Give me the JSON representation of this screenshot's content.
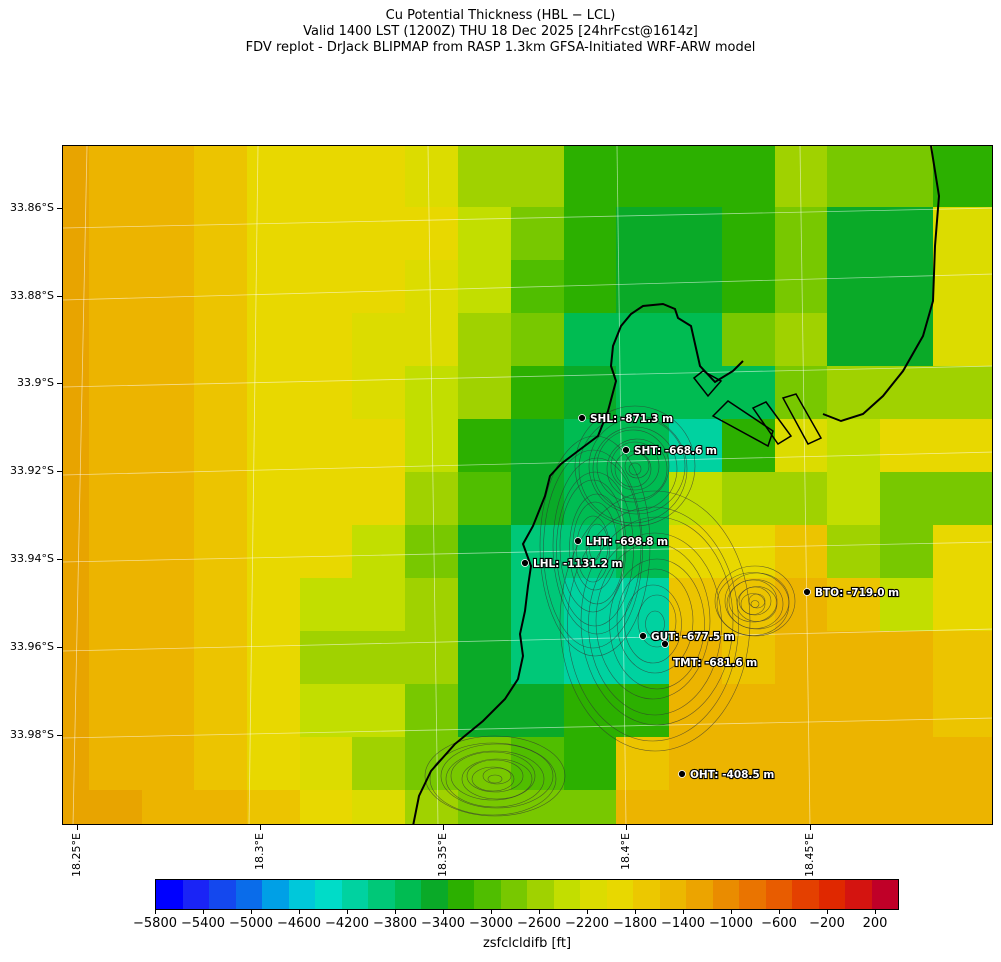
{
  "title": {
    "line1": "Cu Potential Thickness (HBL − LCL)",
    "line2": "Valid 1400 LST (1200Z) THU 18 Dec 2025 [24hrFcst@1614z]",
    "line3": "FDV replot - DrJack BLIPMAP from RASP 1.3km GFSA-Initiated WRF-ARW model"
  },
  "map": {
    "lat_labels": [
      "33.86°S",
      "33.88°S",
      "33.9°S",
      "33.92°S",
      "33.94°S",
      "33.96°S",
      "33.98°S"
    ],
    "lon_labels": [
      "18.25°E",
      "18.3°E",
      "18.35°E",
      "18.4°E",
      "18.45°E"
    ],
    "stations": [
      {
        "code": "SHL",
        "label": "SHL: -871.3 m",
        "value_m": -871.3
      },
      {
        "code": "SHT",
        "label": "SHT: -668.6 m",
        "value_m": -668.6
      },
      {
        "code": "LHT",
        "label": "LHT: -698.8 m",
        "value_m": -698.8
      },
      {
        "code": "LHL",
        "label": "LHL: -1131.2 m",
        "value_m": -1131.2
      },
      {
        "code": "BTO",
        "label": "BTO: -719.0 m",
        "value_m": -719.0
      },
      {
        "code": "GUT",
        "label": "GUT: -677.5 m",
        "value_m": -677.5
      },
      {
        "code": "TMT",
        "label": "TMT: -681.6 m",
        "value_m": -681.6
      },
      {
        "code": "OHT",
        "label": "OHT: -408.5 m",
        "value_m": -408.5
      }
    ]
  },
  "colorbar": {
    "label": "zsfclcldifb [ft]",
    "tick_labels": [
      "−5800",
      "−5400",
      "−5000",
      "−4600",
      "−4200",
      "−3800",
      "−3400",
      "−3000",
      "−2600",
      "−2200",
      "−1800",
      "−1400",
      "−1000",
      "−600",
      "−200",
      "200"
    ],
    "range": [
      -5800,
      400
    ],
    "colors": [
      "#0000ff",
      "#1a24f6",
      "#1448ee",
      "#0a6cea",
      "#00a0e6",
      "#00c8da",
      "#00dcc8",
      "#00d2a0",
      "#00c878",
      "#00bc52",
      "#0aaa28",
      "#2cb000",
      "#50be00",
      "#78c800",
      "#a0d200",
      "#c2de00",
      "#dcdc00",
      "#e8d800",
      "#ecc800",
      "#ecb800",
      "#eca400",
      "#ea8c00",
      "#ea7400",
      "#e85c00",
      "#e44000",
      "#e02800",
      "#d41410",
      "#c00028"
    ]
  }
}
